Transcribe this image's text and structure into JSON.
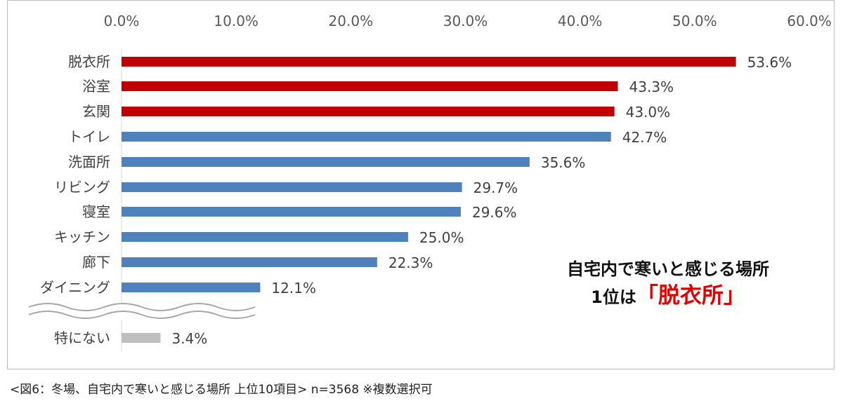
{
  "chart_data": {
    "type": "bar",
    "orientation": "horizontal",
    "xlim": [
      0,
      60
    ],
    "x_ticks": [
      "0.0%",
      "10.0%",
      "20.0%",
      "30.0%",
      "40.0%",
      "50.0%",
      "60.0%"
    ],
    "x_axis_position": "top",
    "grid": false,
    "categories": [
      "脱衣所",
      "浴室",
      "玄関",
      "トイレ",
      "洗面所",
      "リビング",
      "寝室",
      "キッチン",
      "廊下",
      "ダイニング",
      "特にない"
    ],
    "values": [
      53.6,
      43.3,
      43.0,
      42.7,
      35.6,
      29.7,
      29.6,
      25.0,
      22.3,
      12.1,
      3.4
    ],
    "value_labels": [
      "53.6%",
      "43.3%",
      "43.0%",
      "42.7%",
      "35.6%",
      "29.7%",
      "29.6%",
      "25.0%",
      "22.3%",
      "12.1%",
      "3.4%"
    ],
    "bar_colors": [
      "#c00000",
      "#c00000",
      "#c00000",
      "#4f81bd",
      "#4f81bd",
      "#4f81bd",
      "#4f81bd",
      "#4f81bd",
      "#4f81bd",
      "#4f81bd",
      "#bfbfbf"
    ],
    "axis_break_after": "ダイニング"
  },
  "annotation": {
    "line1": "自宅内で寒いと感じる場所",
    "line2_prefix": "1位は",
    "line2_highlight": "「脱衣所」"
  },
  "caption": "<図6：冬場、自宅内で寒いと感じる場所 上位10項目> n=3568 ※複数選択可"
}
